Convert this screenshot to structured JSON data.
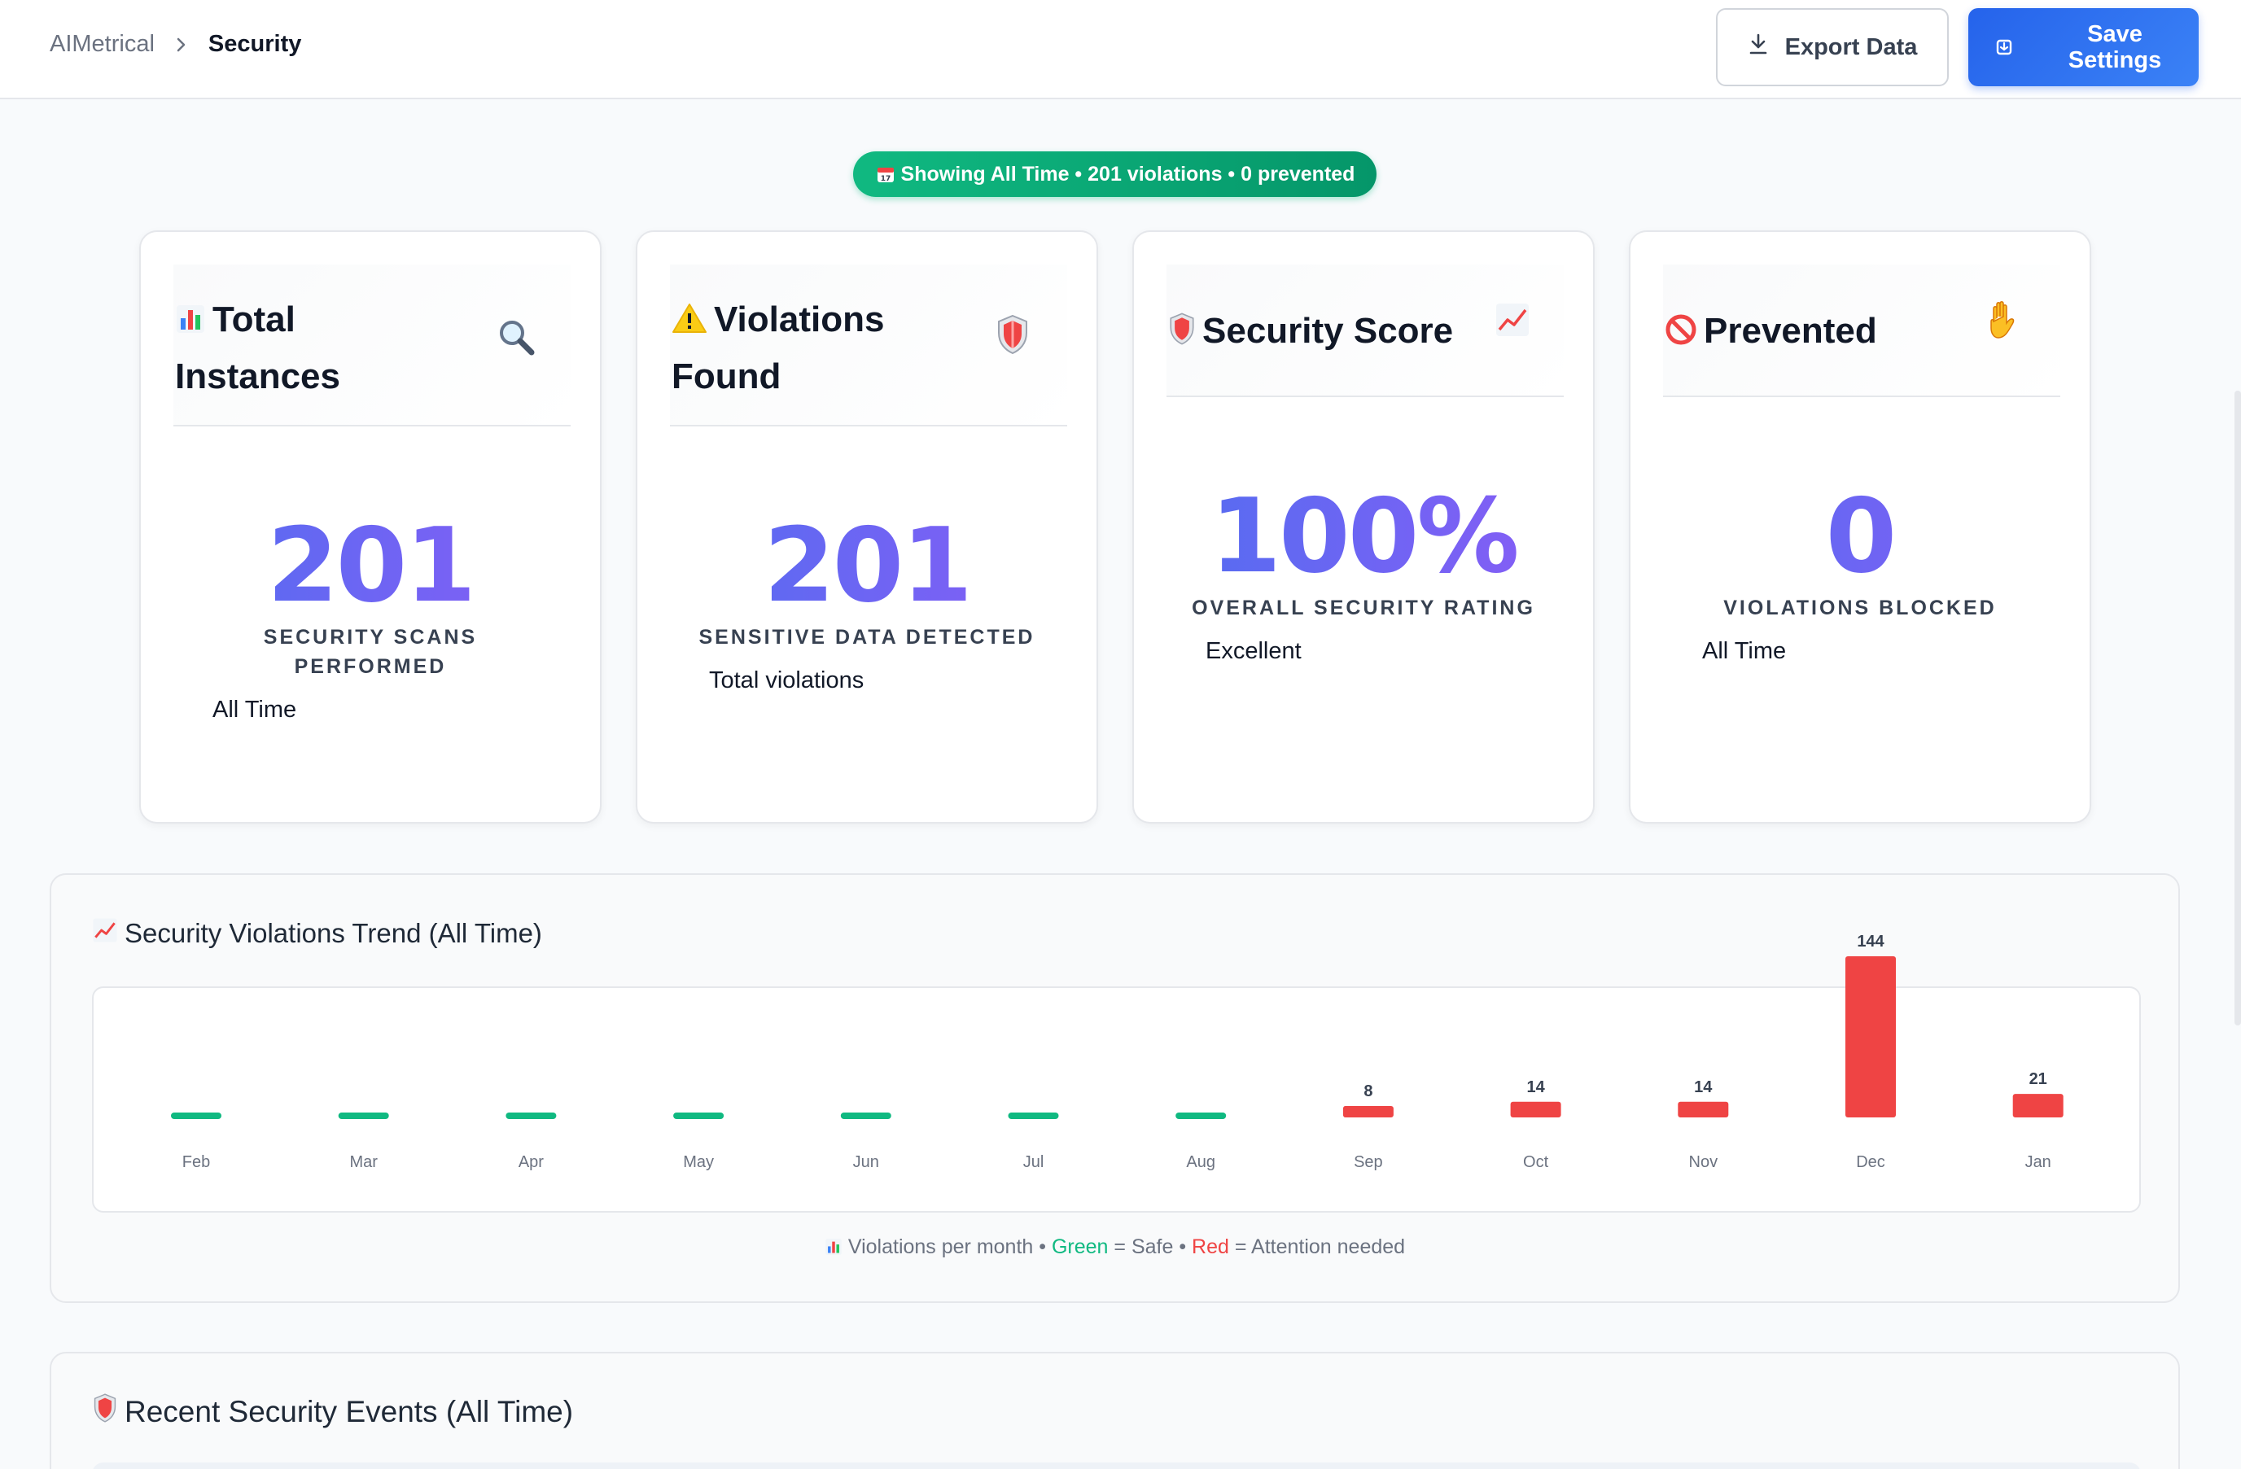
{
  "breadcrumb": {
    "root": "AIMetrical",
    "current": "Security"
  },
  "toolbar": {
    "export_label": "Export Data",
    "save_label_line1": "Save",
    "save_label_line2": "Settings"
  },
  "banner": {
    "text": "Showing All Time • 201 violations • 0 prevented"
  },
  "cards": [
    {
      "title_line1": "Total",
      "title_line2": "Instances",
      "value": "201",
      "caption_line1": "SECURITY SCANS",
      "caption_line2": "PERFORMED",
      "sub": "All Time",
      "corner_icon": "magnifier-icon",
      "title_icon": "bar-chart-icon"
    },
    {
      "title_line1": "Violations",
      "title_line2": "Found",
      "value": "201",
      "caption_line1": "SENSITIVE DATA DETECTED",
      "sub": "Total violations",
      "corner_icon": "shield-icon",
      "title_icon": "warning-icon"
    },
    {
      "title_line1": "Security Score",
      "value": "100%",
      "caption_line1": "OVERALL SECURITY RATING",
      "sub": "Excellent",
      "corner_icon": "trend-chart-icon",
      "title_icon": "shield-icon"
    },
    {
      "title_line1": "Prevented",
      "value": "0",
      "caption_line1": "VIOLATIONS BLOCKED",
      "sub": "All Time",
      "corner_icon": "raised-hand-icon",
      "title_icon": "prohibited-icon"
    }
  ],
  "chart_panel": {
    "title": "Security Violations Trend (All Time)",
    "legend_prefix": "Violations per month •",
    "legend_green": "Green",
    "legend_green_suffix": "= Safe •",
    "legend_red": "Red",
    "legend_red_suffix": "= Attention needed"
  },
  "chart_data": {
    "type": "bar",
    "title": "Security Violations Trend (All Time)",
    "categories": [
      "Feb",
      "Mar",
      "Apr",
      "May",
      "Jun",
      "Jul",
      "Aug",
      "Sep",
      "Oct",
      "Nov",
      "Dec",
      "Jan"
    ],
    "values": [
      0,
      0,
      0,
      0,
      0,
      0,
      0,
      8,
      14,
      14,
      144,
      21
    ],
    "value_labels": [
      "",
      "",
      "",
      "",
      "",
      "",
      "",
      "8",
      "14",
      "14",
      "144",
      "21"
    ],
    "xlabel": "",
    "ylabel": "",
    "ylim": [
      0,
      144
    ],
    "grid": false,
    "colors": {
      "safe": "#10b981",
      "attention": "#ef4444"
    }
  },
  "events_panel": {
    "title": "Recent Security Events (All Time)"
  }
}
